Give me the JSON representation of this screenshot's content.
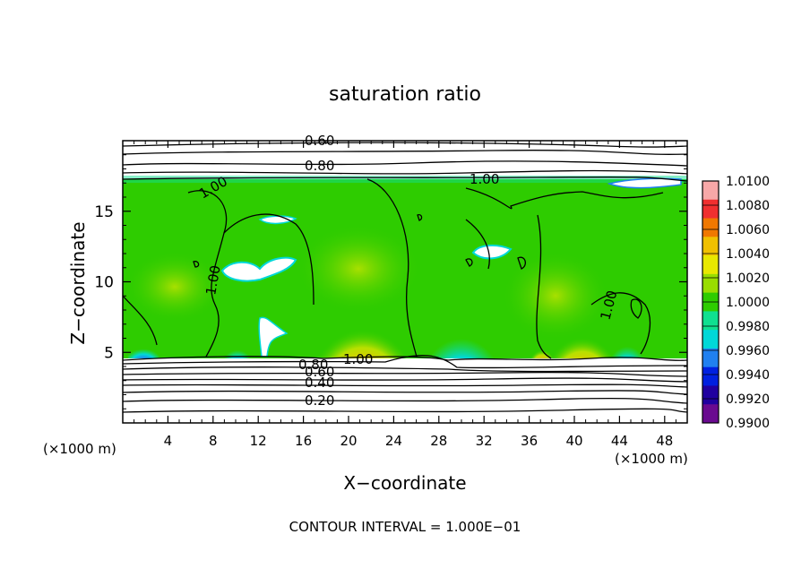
{
  "chart_data": {
    "type": "heatmap",
    "title": "saturation ratio",
    "xlabel": "X−coordinate",
    "ylabel": "Z−coordinate",
    "x_unit": "(×1000 m)",
    "y_unit": "(×1000 m)",
    "xlim": [
      0,
      50
    ],
    "ylim": [
      0,
      20
    ],
    "x_ticks": [
      4,
      8,
      12,
      16,
      20,
      24,
      28,
      32,
      36,
      40,
      44,
      48
    ],
    "y_ticks": [
      5,
      10,
      15
    ],
    "colorbar": {
      "levels": [
        "1.0100",
        "1.0080",
        "1.0060",
        "1.0040",
        "1.0020",
        "1.0000",
        "0.9980",
        "0.9960",
        "0.9940",
        "0.9920",
        "0.9900"
      ],
      "colors": [
        "#f7a8a8",
        "#f03030",
        "#f07800",
        "#f0c000",
        "#e8e800",
        "#99dd00",
        "#2ecc00",
        "#10e090",
        "#00d8d8",
        "#2080f0",
        "#0020e0",
        "#2000a0",
        "#6a0a90"
      ]
    },
    "contour_labels": [
      "0.60",
      "0.80",
      "1.00",
      "1.00",
      "1.00",
      "1.00",
      "1.00",
      "0.80",
      "0.60",
      "0.40",
      "0.20"
    ],
    "footer": "CONTOUR INTERVAL = 1.000E−01"
  }
}
